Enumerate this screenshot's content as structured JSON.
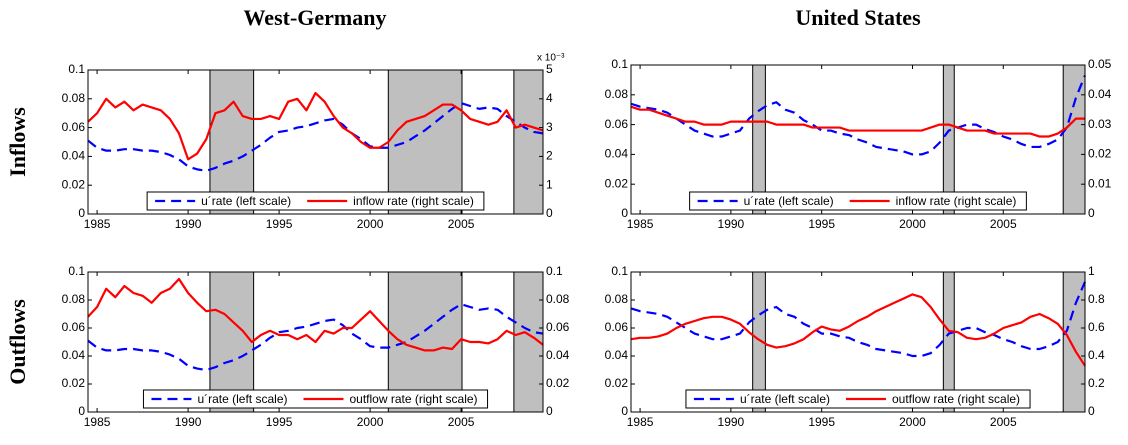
{
  "figure": {
    "column_titles": [
      "West-Germany",
      "United States"
    ],
    "row_titles": [
      "Inflows",
      "Outflows"
    ]
  },
  "chart_data": [
    {
      "type": "line",
      "y2_multiplier": "x 10⁻³",
      "x": [
        1984.5,
        1985,
        1985.5,
        1986,
        1986.5,
        1987,
        1987.5,
        1988,
        1988.5,
        1989,
        1989.5,
        1990,
        1990.5,
        1991,
        1991.5,
        1992,
        1992.5,
        1993,
        1993.5,
        1994,
        1994.5,
        1995,
        1995.5,
        1996,
        1996.5,
        1997,
        1997.5,
        1998,
        1998.5,
        1999,
        1999.5,
        2000,
        2000.5,
        2001,
        2001.5,
        2002,
        2002.5,
        2003,
        2003.5,
        2004,
        2004.5,
        2005,
        2005.5,
        2006,
        2006.5,
        2007,
        2007.5,
        2008,
        2008.5,
        2009,
        2009.5
      ],
      "xlim": [
        1984.5,
        2009.5
      ],
      "xticks": [
        1985,
        1990,
        1995,
        2000,
        2005
      ],
      "ylim": [
        0,
        0.1
      ],
      "yticks": [
        0,
        0.02,
        0.04,
        0.06,
        0.08,
        0.1
      ],
      "y2lim": [
        0,
        5
      ],
      "y2ticks": [
        0,
        1,
        2,
        3,
        4,
        5
      ],
      "shaded_periods": [
        {
          "start": 1991.2,
          "end": 1993.6
        },
        {
          "start": 2001,
          "end": 2005.05
        },
        {
          "start": 2007.9,
          "end": 2009.5
        }
      ],
      "legend": "lower center",
      "series": [
        {
          "name": "u´rate (left scale)",
          "color": "#0000ff",
          "dashed": true,
          "values": [
            0.051,
            0.046,
            0.044,
            0.044,
            0.045,
            0.045,
            0.044,
            0.044,
            0.043,
            0.041,
            0.038,
            0.033,
            0.031,
            0.03,
            0.032,
            0.035,
            0.037,
            0.04,
            0.044,
            0.048,
            0.053,
            0.057,
            0.058,
            0.06,
            0.061,
            0.063,
            0.065,
            0.066,
            0.062,
            0.056,
            0.052,
            0.047,
            0.046,
            0.046,
            0.048,
            0.05,
            0.054,
            0.058,
            0.063,
            0.068,
            0.073,
            0.077,
            0.075,
            0.073,
            0.074,
            0.073,
            0.068,
            0.064,
            0.06,
            0.057,
            0.056
          ]
        },
        {
          "name": "inflow rate (right scale)",
          "color": "#ff0000",
          "axis": "y2",
          "values": [
            3.2,
            3.5,
            4.0,
            3.7,
            3.9,
            3.6,
            3.8,
            3.7,
            3.6,
            3.3,
            2.8,
            1.9,
            2.1,
            2.6,
            3.5,
            3.6,
            3.9,
            3.4,
            3.3,
            3.3,
            3.4,
            3.3,
            3.9,
            4.0,
            3.6,
            4.2,
            3.9,
            3.4,
            3.0,
            2.8,
            2.5,
            2.3,
            2.3,
            2.5,
            2.9,
            3.2,
            3.3,
            3.4,
            3.6,
            3.8,
            3.8,
            3.6,
            3.3,
            3.2,
            3.1,
            3.2,
            3.6,
            3.0,
            3.1,
            3.0,
            2.9
          ]
        }
      ]
    },
    {
      "type": "line",
      "x": [
        1984.5,
        1985,
        1985.5,
        1986,
        1986.5,
        1987,
        1987.5,
        1988,
        1988.5,
        1989,
        1989.5,
        1990,
        1990.5,
        1991,
        1991.5,
        1992,
        1992.5,
        1993,
        1993.5,
        1994,
        1994.5,
        1995,
        1995.5,
        1996,
        1996.5,
        1997,
        1997.5,
        1998,
        1998.5,
        1999,
        1999.5,
        2000,
        2000.5,
        2001,
        2001.5,
        2002,
        2002.5,
        2003,
        2003.5,
        2004,
        2004.5,
        2005,
        2005.5,
        2006,
        2006.5,
        2007,
        2007.5,
        2008,
        2008.5,
        2009,
        2009.5
      ],
      "xlim": [
        1984.5,
        2009.5
      ],
      "xticks": [
        1985,
        1990,
        1995,
        2000,
        2005
      ],
      "ylim": [
        0,
        0.1
      ],
      "yticks": [
        0,
        0.02,
        0.04,
        0.06,
        0.08,
        0.1
      ],
      "y2lim": [
        0,
        0.05
      ],
      "y2ticks": [
        0,
        0.01,
        0.02,
        0.03,
        0.04,
        0.05
      ],
      "shaded_periods": [
        {
          "start": 1991.2,
          "end": 1991.9
        },
        {
          "start": 2001.7,
          "end": 2002.3
        },
        {
          "start": 2008.3,
          "end": 2009.5
        }
      ],
      "legend": "lower center",
      "series": [
        {
          "name": "u´rate (left scale)",
          "color": "#0000ff",
          "dashed": true,
          "values": [
            0.074,
            0.072,
            0.071,
            0.07,
            0.068,
            0.064,
            0.06,
            0.056,
            0.054,
            0.052,
            0.052,
            0.054,
            0.056,
            0.064,
            0.069,
            0.073,
            0.075,
            0.07,
            0.068,
            0.063,
            0.06,
            0.056,
            0.056,
            0.054,
            0.053,
            0.05,
            0.048,
            0.045,
            0.044,
            0.043,
            0.042,
            0.04,
            0.04,
            0.042,
            0.048,
            0.056,
            0.058,
            0.06,
            0.06,
            0.057,
            0.055,
            0.052,
            0.05,
            0.047,
            0.045,
            0.045,
            0.047,
            0.05,
            0.058,
            0.078,
            0.093
          ]
        },
        {
          "name": "inflow rate (right scale)",
          "color": "#ff0000",
          "axis": "y2",
          "values": [
            0.036,
            0.035,
            0.035,
            0.034,
            0.033,
            0.032,
            0.031,
            0.031,
            0.03,
            0.03,
            0.03,
            0.031,
            0.031,
            0.031,
            0.031,
            0.031,
            0.03,
            0.03,
            0.03,
            0.03,
            0.029,
            0.029,
            0.029,
            0.029,
            0.028,
            0.028,
            0.028,
            0.028,
            0.028,
            0.028,
            0.028,
            0.028,
            0.028,
            0.029,
            0.03,
            0.03,
            0.029,
            0.028,
            0.028,
            0.028,
            0.027,
            0.027,
            0.027,
            0.027,
            0.027,
            0.026,
            0.026,
            0.027,
            0.029,
            0.032,
            0.032
          ]
        }
      ]
    },
    {
      "type": "line",
      "x": [
        1984.5,
        1985,
        1985.5,
        1986,
        1986.5,
        1987,
        1987.5,
        1988,
        1988.5,
        1989,
        1989.5,
        1990,
        1990.5,
        1991,
        1991.5,
        1992,
        1992.5,
        1993,
        1993.5,
        1994,
        1994.5,
        1995,
        1995.5,
        1996,
        1996.5,
        1997,
        1997.5,
        1998,
        1998.5,
        1999,
        1999.5,
        2000,
        2000.5,
        2001,
        2001.5,
        2002,
        2002.5,
        2003,
        2003.5,
        2004,
        2004.5,
        2005,
        2005.5,
        2006,
        2006.5,
        2007,
        2007.5,
        2008,
        2008.5,
        2009,
        2009.5
      ],
      "xlim": [
        1984.5,
        2009.5
      ],
      "xticks": [
        1985,
        1990,
        1995,
        2000,
        2005
      ],
      "ylim": [
        0,
        0.1
      ],
      "yticks": [
        0,
        0.02,
        0.04,
        0.06,
        0.08,
        0.1
      ],
      "y2lim": [
        0,
        0.1
      ],
      "y2ticks": [
        0,
        0.02,
        0.04,
        0.06,
        0.08,
        0.1
      ],
      "shaded_periods": [
        {
          "start": 1991.2,
          "end": 1993.6
        },
        {
          "start": 2001,
          "end": 2005.05
        },
        {
          "start": 2007.9,
          "end": 2009.5
        }
      ],
      "legend": "lower center",
      "series": [
        {
          "name": "u´rate (left scale)",
          "color": "#0000ff",
          "dashed": true,
          "values": [
            0.051,
            0.046,
            0.044,
            0.044,
            0.045,
            0.045,
            0.044,
            0.044,
            0.043,
            0.041,
            0.038,
            0.033,
            0.031,
            0.03,
            0.032,
            0.035,
            0.037,
            0.04,
            0.044,
            0.048,
            0.053,
            0.057,
            0.058,
            0.06,
            0.061,
            0.063,
            0.065,
            0.066,
            0.062,
            0.056,
            0.052,
            0.047,
            0.046,
            0.046,
            0.048,
            0.05,
            0.054,
            0.058,
            0.063,
            0.068,
            0.073,
            0.077,
            0.075,
            0.073,
            0.074,
            0.073,
            0.068,
            0.064,
            0.06,
            0.057,
            0.056
          ]
        },
        {
          "name": "outflow rate (right scale)",
          "color": "#ff0000",
          "axis": "y2",
          "values": [
            0.068,
            0.075,
            0.088,
            0.082,
            0.09,
            0.085,
            0.083,
            0.078,
            0.085,
            0.088,
            0.095,
            0.085,
            0.078,
            0.072,
            0.073,
            0.07,
            0.064,
            0.058,
            0.05,
            0.055,
            0.058,
            0.055,
            0.055,
            0.052,
            0.055,
            0.05,
            0.058,
            0.056,
            0.06,
            0.06,
            0.066,
            0.072,
            0.065,
            0.058,
            0.052,
            0.048,
            0.046,
            0.044,
            0.044,
            0.046,
            0.045,
            0.052,
            0.05,
            0.05,
            0.049,
            0.052,
            0.058,
            0.055,
            0.057,
            0.053,
            0.048
          ]
        }
      ]
    },
    {
      "type": "line",
      "x": [
        1984.5,
        1985,
        1985.5,
        1986,
        1986.5,
        1987,
        1987.5,
        1988,
        1988.5,
        1989,
        1989.5,
        1990,
        1990.5,
        1991,
        1991.5,
        1992,
        1992.5,
        1993,
        1993.5,
        1994,
        1994.5,
        1995,
        1995.5,
        1996,
        1996.5,
        1997,
        1997.5,
        1998,
        1998.5,
        1999,
        1999.5,
        2000,
        2000.5,
        2001,
        2001.5,
        2002,
        2002.5,
        2003,
        2003.5,
        2004,
        2004.5,
        2005,
        2005.5,
        2006,
        2006.5,
        2007,
        2007.5,
        2008,
        2008.5,
        2009,
        2009.5
      ],
      "xlim": [
        1984.5,
        2009.5
      ],
      "xticks": [
        1985,
        1990,
        1995,
        2000,
        2005
      ],
      "ylim": [
        0,
        0.1
      ],
      "yticks": [
        0,
        0.02,
        0.04,
        0.06,
        0.08,
        0.1
      ],
      "y2lim": [
        0,
        1
      ],
      "y2ticks": [
        0,
        0.2,
        0.4,
        0.6,
        0.8,
        1
      ],
      "shaded_periods": [
        {
          "start": 1991.2,
          "end": 1991.9
        },
        {
          "start": 2001.7,
          "end": 2002.3
        },
        {
          "start": 2008.3,
          "end": 2009.5
        }
      ],
      "legend": "lower center",
      "series": [
        {
          "name": "u´rate (left scale)",
          "color": "#0000ff",
          "dashed": true,
          "values": [
            0.074,
            0.072,
            0.071,
            0.07,
            0.068,
            0.064,
            0.06,
            0.056,
            0.054,
            0.052,
            0.052,
            0.054,
            0.056,
            0.064,
            0.069,
            0.073,
            0.075,
            0.07,
            0.068,
            0.063,
            0.06,
            0.056,
            0.056,
            0.054,
            0.053,
            0.05,
            0.048,
            0.045,
            0.044,
            0.043,
            0.042,
            0.04,
            0.04,
            0.042,
            0.048,
            0.056,
            0.058,
            0.06,
            0.06,
            0.057,
            0.055,
            0.052,
            0.05,
            0.047,
            0.045,
            0.045,
            0.047,
            0.05,
            0.058,
            0.078,
            0.093
          ]
        },
        {
          "name": "outflow rate (right scale)",
          "color": "#ff0000",
          "axis": "y2",
          "values": [
            0.52,
            0.53,
            0.53,
            0.54,
            0.56,
            0.6,
            0.63,
            0.65,
            0.67,
            0.68,
            0.68,
            0.66,
            0.63,
            0.57,
            0.52,
            0.48,
            0.46,
            0.47,
            0.49,
            0.52,
            0.57,
            0.61,
            0.59,
            0.58,
            0.61,
            0.65,
            0.68,
            0.72,
            0.75,
            0.78,
            0.81,
            0.84,
            0.82,
            0.75,
            0.66,
            0.58,
            0.57,
            0.53,
            0.52,
            0.53,
            0.56,
            0.6,
            0.62,
            0.64,
            0.68,
            0.7,
            0.67,
            0.63,
            0.55,
            0.43,
            0.33
          ]
        }
      ]
    }
  ]
}
